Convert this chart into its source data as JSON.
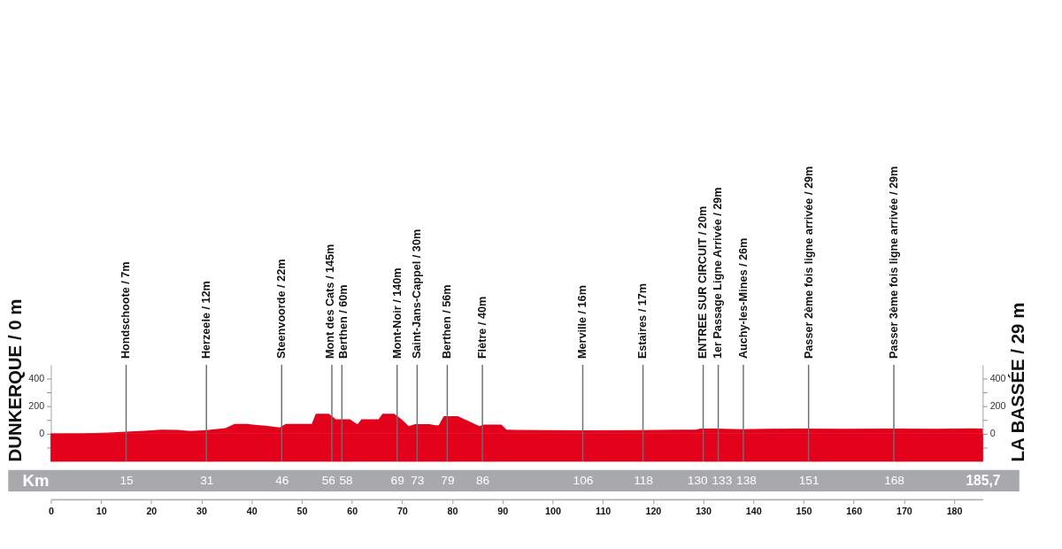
{
  "chart_data": {
    "type": "area",
    "ylabel": "DUNKERQUE / 0 m",
    "y2label": "LA BASSÉE / 29 m",
    "x2label": "Km",
    "x": [
      0,
      6,
      11.5,
      15,
      18.7,
      22,
      25.3,
      27.8,
      31,
      34.8,
      36.6,
      39.1,
      40.6,
      42.8,
      45.6,
      46.8,
      52,
      52.8,
      55.4,
      56.8,
      59.6,
      61.1,
      61.9,
      65.3,
      66.1,
      68.4,
      69.9,
      71.3,
      72.6,
      75.5,
      76.6,
      77.3,
      78.3,
      81.1,
      83.6,
      85.4,
      86.3,
      89.8,
      90.8,
      92.5,
      105,
      118,
      128.5,
      129.5,
      132.5,
      137.4,
      142.6,
      148.6,
      158.5,
      167,
      176.3,
      183.5,
      185.7
    ],
    "series": [
      {
        "color": "#e2001a",
        "values": [
          0,
          3,
          8,
          15,
          22,
          30,
          28,
          20,
          27,
          40,
          72,
          72,
          65,
          58,
          45,
          72,
          72,
          145,
          145,
          105,
          105,
          68,
          105,
          105,
          145,
          145,
          105,
          55,
          70,
          70,
          62,
          62,
          128,
          128,
          85,
          55,
          67,
          67,
          30,
          28,
          25,
          27,
          30,
          38,
          37,
          33,
          36,
          38,
          36,
          38,
          36,
          39,
          38
        ]
      }
    ],
    "bands": [
      {
        "axis": "y",
        "from": -200,
        "to": 0,
        "color": "#e2001a"
      }
    ],
    "xlim": [
      0,
      185.7
    ],
    "xticks": [
      0,
      10,
      20,
      30,
      40,
      50,
      60,
      70,
      80,
      90,
      100,
      110,
      120,
      130,
      140,
      150,
      160,
      170,
      180
    ],
    "x2lim": [
      0,
      185.7
    ],
    "x2ticks": [
      15,
      31,
      46,
      56,
      58,
      69,
      73,
      79,
      86,
      106,
      118,
      130,
      133,
      138,
      151,
      168,
      {
        "value": 185.7,
        "label": "185,7"
      }
    ],
    "ylim": [
      -200,
      500
    ],
    "yticks": [
      {
        "value": -100,
        "label": null
      },
      0,
      {
        "value": 100,
        "label": null
      },
      200,
      {
        "value": 300,
        "label": null
      },
      400
    ],
    "y2lim": [
      -200,
      500
    ],
    "y2ticks": [
      {
        "value": -100,
        "label": null
      },
      0,
      {
        "value": 100,
        "label": null
      },
      200,
      {
        "value": 300,
        "label": null
      },
      400
    ],
    "ref_lines": [
      {
        "axis": "x",
        "value": 15,
        "label": "Hondschoote / 7m",
        "color": "#6d6e71"
      },
      {
        "axis": "x",
        "value": 31,
        "label": "Herzeele / 12m",
        "color": "#6d6e71"
      },
      {
        "axis": "x",
        "value": 46,
        "label": "Steenvoorde / 22m",
        "color": "#6d6e71"
      },
      {
        "axis": "x",
        "value": 56,
        "label": "Mont des Cats / 145m",
        "color": "#6d6e71"
      },
      {
        "axis": "x",
        "value": 58,
        "label": "Berthen / 60m",
        "color": "#6d6e71"
      },
      {
        "axis": "x",
        "value": 69,
        "label": "Mont-Noir / 140m",
        "color": "#6d6e71"
      },
      {
        "axis": "x",
        "value": 73,
        "label": "Saint-Jans-Cappel / 30m",
        "color": "#6d6e71"
      },
      {
        "axis": "x",
        "value": 79,
        "label": "Berthen / 56m",
        "color": "#6d6e71"
      },
      {
        "axis": "x",
        "value": 86,
        "label": "Flètre / 40m",
        "color": "#6d6e71"
      },
      {
        "axis": "x",
        "value": 106,
        "label": "Merville / 16m",
        "color": "#6d6e71"
      },
      {
        "axis": "x",
        "value": 118,
        "label": "Estaires / 17m",
        "color": "#6d6e71"
      },
      {
        "axis": "x",
        "value": 130,
        "label": "ENTREE SUR CIRCUIT / 20m",
        "color": "#6d6e71"
      },
      {
        "axis": "x",
        "value": 133,
        "label": "1er Passage Ligne Arrivée / 29m",
        "color": "#6d6e71"
      },
      {
        "axis": "x",
        "value": 138,
        "label": "Auchy-les-Mines / 26m",
        "color": "#6d6e71"
      },
      {
        "axis": "x",
        "value": 151,
        "label": "Passer 2ème fois ligne arrivée / 29m",
        "color": "#6d6e71"
      },
      {
        "axis": "x",
        "value": 168,
        "label": "Passer 3ème fois ligne arrivée / 29m",
        "color": "#6d6e71"
      }
    ]
  }
}
